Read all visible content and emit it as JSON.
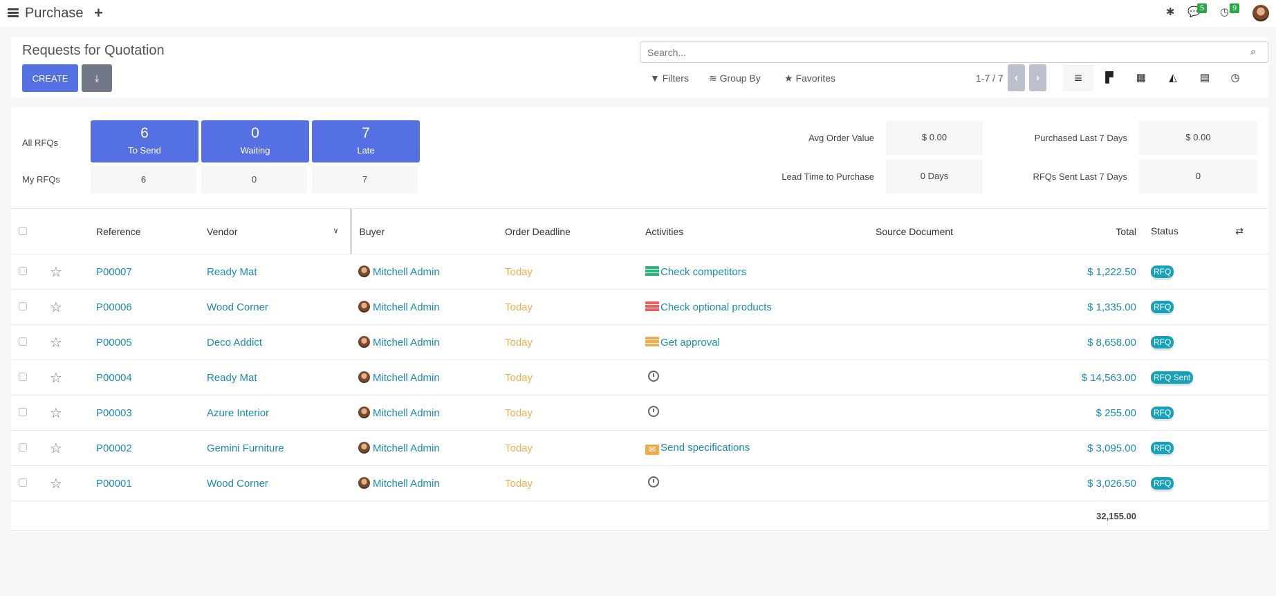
{
  "topbar": {
    "app_title": "Purchase",
    "messages_count": "5",
    "activities_count": "9"
  },
  "header": {
    "page_title": "Requests for Quotation",
    "create_label": "CREATE",
    "search_placeholder": "Search...",
    "filters_label": "Filters",
    "groupby_label": "Group By",
    "favorites_label": "Favorites",
    "pager": "1-7 / 7"
  },
  "dashboard": {
    "all_label": "All RFQs",
    "my_label": "My RFQs",
    "stats": [
      {
        "count": "6",
        "label": "To Send",
        "mine": "6"
      },
      {
        "count": "0",
        "label": "Waiting",
        "mine": "0"
      },
      {
        "count": "7",
        "label": "Late",
        "mine": "7"
      }
    ],
    "kpis": [
      {
        "label": "Avg Order Value",
        "value": "$ 0.00"
      },
      {
        "label": "Purchased Last 7 Days",
        "value": "$ 0.00"
      },
      {
        "label": "Lead Time to Purchase",
        "value": "0 Days"
      },
      {
        "label": "RFQs Sent Last 7 Days",
        "value": "0"
      }
    ]
  },
  "table": {
    "columns": [
      "Reference",
      "Vendor",
      "Buyer",
      "Order Deadline",
      "Activities",
      "Source Document",
      "Total",
      "Status"
    ],
    "rows": [
      {
        "ref": "P00007",
        "vendor": "Ready Mat",
        "buyer": "Mitchell Admin",
        "deadline": "Today",
        "activity": "Check competitors",
        "activity_color": "#28b77a",
        "activity_icon": "tasks-icon",
        "source": "",
        "total": "$ 1,222.50",
        "status": "RFQ"
      },
      {
        "ref": "P00006",
        "vendor": "Wood Corner",
        "buyer": "Mitchell Admin",
        "deadline": "Today",
        "activity": "Check optional products",
        "activity_color": "#ef5e5e",
        "activity_icon": "tasks-icon",
        "source": "",
        "total": "$ 1,335.00",
        "status": "RFQ"
      },
      {
        "ref": "P00005",
        "vendor": "Deco Addict",
        "buyer": "Mitchell Admin",
        "deadline": "Today",
        "activity": "Get approval",
        "activity_color": "#f0ad4e",
        "activity_icon": "tasks-icon",
        "source": "",
        "total": "$ 8,658.00",
        "status": "RFQ"
      },
      {
        "ref": "P00004",
        "vendor": "Ready Mat",
        "buyer": "Mitchell Admin",
        "deadline": "Today",
        "activity": "",
        "activity_icon": "clock-icon",
        "source": "",
        "total": "$ 14,563.00",
        "status": "RFQ Sent"
      },
      {
        "ref": "P00003",
        "vendor": "Azure Interior",
        "buyer": "Mitchell Admin",
        "deadline": "Today",
        "activity": "",
        "activity_icon": "clock-icon",
        "source": "",
        "total": "$ 255.00",
        "status": "RFQ"
      },
      {
        "ref": "P00002",
        "vendor": "Gemini Furniture",
        "buyer": "Mitchell Admin",
        "deadline": "Today",
        "activity": "Send specifications",
        "activity_color": "#f0ad4e",
        "activity_icon": "envelope-icon",
        "source": "",
        "total": "$ 3,095.00",
        "status": "RFQ"
      },
      {
        "ref": "P00001",
        "vendor": "Wood Corner",
        "buyer": "Mitchell Admin",
        "deadline": "Today",
        "activity": "",
        "activity_icon": "clock-icon",
        "source": "",
        "total": "$ 3,026.50",
        "status": "RFQ"
      }
    ],
    "sum_total": "32,155.00"
  },
  "colors": {
    "primary": "#5470e3",
    "link": "#1a8bb3",
    "today": "#f0ad4e",
    "status": "#17a2b8"
  }
}
